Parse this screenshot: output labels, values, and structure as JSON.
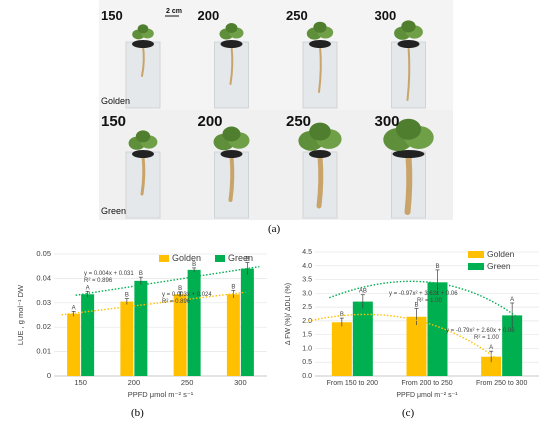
{
  "figure": {
    "panel_a": {
      "scale_label": "2 cm",
      "rows": [
        {
          "name": "Golden",
          "labels": [
            "150",
            "200",
            "250",
            "300"
          ]
        },
        {
          "name": "Green",
          "labels": [
            "150",
            "200",
            "250",
            "300"
          ]
        }
      ],
      "caption": "(a)"
    },
    "caption_b": "(b)",
    "caption_c": "(c)"
  },
  "colors": {
    "golden": "#ffc000",
    "green": "#00b050"
  },
  "chart_data": [
    {
      "type": "bar",
      "panel": "b",
      "categories": [
        "150",
        "200",
        "250",
        "300"
      ],
      "series": [
        {
          "name": "Golden",
          "values": [
            0.0255,
            0.0305,
            0.0335,
            0.0335
          ],
          "errors": [
            0.001,
            0.0012,
            0.001,
            0.0015
          ],
          "letters": [
            "A",
            "B",
            "B",
            "B"
          ],
          "trendline": "y = 0.003x + 0.024",
          "r2": "R² = 0.896"
        },
        {
          "name": "Green",
          "values": [
            0.0335,
            0.039,
            0.0435,
            0.044
          ],
          "errors": [
            0.0012,
            0.0015,
            0.0008,
            0.0025
          ],
          "letters": [
            "A",
            "B",
            "B",
            "B"
          ],
          "trendline": "y = 0.004x + 0.031",
          "r2": "R² = 0.896"
        }
      ],
      "ylabel": "LUE , g mol⁻¹ DW",
      "xlabel": "PPFD μmol m⁻² s⁻¹",
      "ylim": [
        0,
        0.05
      ],
      "yticks": [
        "0",
        "0.01",
        "0.02",
        "0.03",
        "0.04",
        "0.05"
      ],
      "legend": "top-right"
    },
    {
      "type": "bar",
      "panel": "c",
      "categories": [
        "From 150 to 200",
        "From 200 to 250",
        "From 250 to 300"
      ],
      "series": [
        {
          "name": "Golden",
          "values": [
            1.95,
            2.15,
            0.7
          ],
          "errors": [
            0.15,
            0.3,
            0.2
          ],
          "letters": [
            "B",
            "B",
            "A"
          ],
          "trendline": "y = -0.79x² + 2.60x + 0.06",
          "r2": "R² = 1.00"
        },
        {
          "name": "Green",
          "values": [
            2.7,
            3.4,
            2.2
          ],
          "errors": [
            0.25,
            0.45,
            0.45
          ],
          "letters": [
            "AB",
            "B",
            "A"
          ],
          "trendline": "y = -0.97x² + 3.63x + 0.06",
          "r2": "R² = 1.00"
        }
      ],
      "ylabel": "Δ FW (%)/ ΔDLI (%)",
      "xlabel": "PPFD μmol m⁻² s⁻¹",
      "ylim": [
        0,
        4.5
      ],
      "yticks": [
        "0.0",
        "0.5",
        "1.0",
        "1.5",
        "2.0",
        "2.5",
        "3.0",
        "3.5",
        "4.0",
        "4.5"
      ],
      "legend": "top-right"
    }
  ]
}
